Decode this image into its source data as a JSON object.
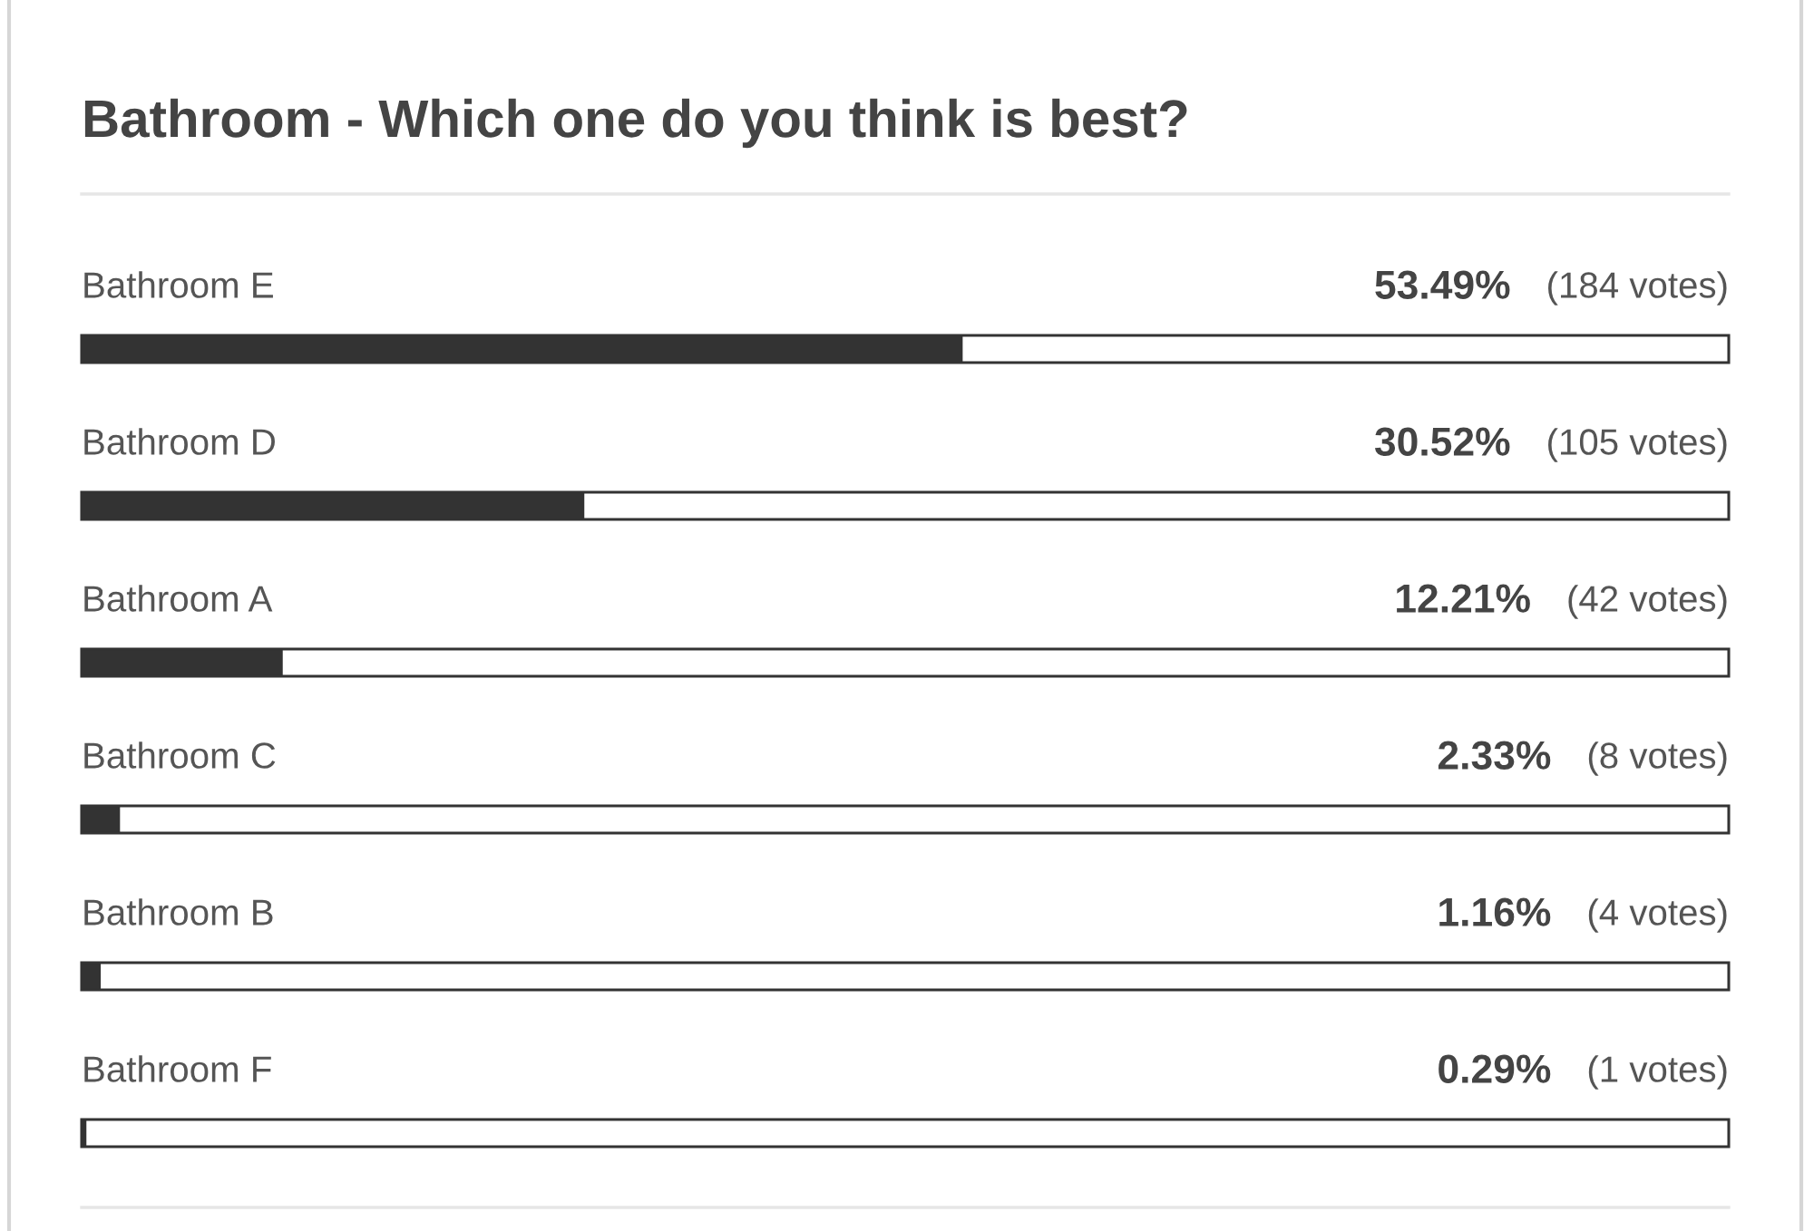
{
  "chart_data": {
    "type": "bar",
    "orientation": "horizontal",
    "title": "Bathroom - Which one do you think is best?",
    "categories": [
      "Bathroom E",
      "Bathroom D",
      "Bathroom A",
      "Bathroom C",
      "Bathroom B",
      "Bathroom F"
    ],
    "values": [
      53.49,
      30.52,
      12.21,
      2.33,
      1.16,
      0.29
    ],
    "color": "#333333",
    "xlim": [
      0,
      100
    ],
    "value_labels": [
      "53.49%  (184 votes)",
      "30.52%  (105 votes)",
      "12.21%  (42 votes)",
      "2.33%  (8 votes)",
      "1.16%  (4 votes)",
      "0.29%  (1 votes)"
    ],
    "tick_labels": "y"
  }
}
